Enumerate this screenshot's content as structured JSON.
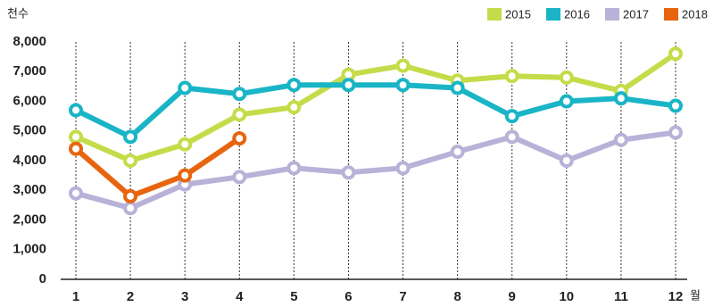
{
  "chart_data": {
    "type": "line",
    "y_label": "천수",
    "x_label": "월",
    "categories": [
      "1",
      "2",
      "3",
      "4",
      "5",
      "6",
      "7",
      "8",
      "9",
      "10",
      "11",
      "12"
    ],
    "series": [
      {
        "name": "2015",
        "color": "#c5dc4a",
        "values": [
          4800,
          4000,
          4550,
          5550,
          5800,
          6900,
          7200,
          6700,
          6850,
          6800,
          6350,
          7600
        ]
      },
      {
        "name": "2016",
        "color": "#19b5c6",
        "values": [
          5700,
          4800,
          6450,
          6250,
          6550,
          6550,
          6550,
          6450,
          5500,
          6000,
          6100,
          5850
        ]
      },
      {
        "name": "2017",
        "color": "#b9b2d8",
        "values": [
          2900,
          2400,
          3200,
          3450,
          3750,
          3600,
          3750,
          4300,
          4800,
          4000,
          4700,
          4950
        ]
      },
      {
        "name": "2018",
        "color": "#e8650f",
        "values": [
          4400,
          2800,
          3500,
          4750,
          null,
          null,
          null,
          null,
          null,
          null,
          null,
          null
        ]
      }
    ],
    "ylim": [
      0,
      8000
    ],
    "yticks": [
      0,
      {
        "value": 1000,
        "label": "1,000"
      },
      {
        "value": 2000,
        "label": "2,000"
      },
      {
        "value": 3000,
        "label": "3,000"
      },
      {
        "value": 4000,
        "label": "4,000"
      },
      {
        "value": 5000,
        "label": "5,000"
      },
      {
        "value": 6000,
        "label": "6,000"
      },
      {
        "value": 7000,
        "label": "7,000"
      },
      {
        "value": 8000,
        "label": "8,000"
      }
    ],
    "grid": "x-dashed",
    "legend": "top-right"
  }
}
